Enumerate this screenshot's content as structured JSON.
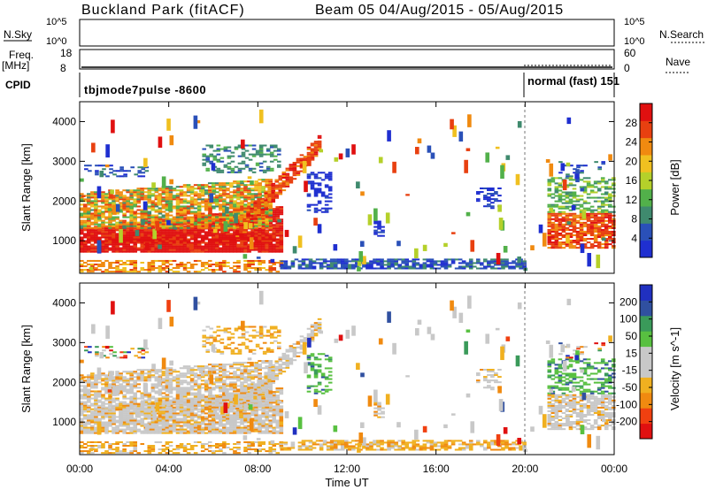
{
  "header": {
    "title": "Buckland Park (fitACF)",
    "beam_info": "Beam 05 04/Aug/2015 - 05/Aug/2015"
  },
  "noise_panel": {
    "left_label": "N.Sky",
    "right_label": "N.Search",
    "tick_hi": "10^5",
    "tick_lo": "10^0",
    "tick_hi_right": "10^5",
    "tick_lo_right": "10^0"
  },
  "freq_panel": {
    "left_label_1": "Freq.",
    "left_label_2": "[MHz]",
    "tick_hi": "18",
    "tick_lo": "8",
    "right_label": "Nave",
    "right_tick_hi": "60",
    "right_tick_lo": "0"
  },
  "cpid_panel": {
    "label": "CPID",
    "segments": [
      {
        "text": "tbjmode7pulse -8600"
      },
      {
        "text": "normal (fast) 151"
      }
    ]
  },
  "colors": {
    "power": [
      "#1f2fd0",
      "#2a50b8",
      "#3f8a6e",
      "#52b04a",
      "#b5d02a",
      "#f0c020",
      "#f08a10",
      "#e84010",
      "#e01010"
    ],
    "velocity": [
      "#e01010",
      "#f04010",
      "#f08a10",
      "#f0b020",
      "#c8c8c8",
      "#c8c8c8",
      "#58c040",
      "#3a9a5a",
      "#3050a0",
      "#2030c0"
    ]
  },
  "chart_data": [
    {
      "type": "heatmap",
      "title": "",
      "xlabel": "Time UT",
      "ylabel": "Slant Range [km]",
      "xlim": [
        "00:00",
        "24:00"
      ],
      "ylim": [
        180,
        4500
      ],
      "x_ticks": [
        "00:00",
        "04:00",
        "08:00",
        "12:00",
        "16:00",
        "20:00",
        "00:00"
      ],
      "y_ticks": [
        "1000",
        "2000",
        "3000",
        "4000"
      ],
      "colorbar": {
        "label": "Power [dB]",
        "ticks": [
          "4",
          "8",
          "12",
          "16",
          "20",
          "24",
          "28"
        ],
        "range": [
          0,
          30
        ]
      }
    },
    {
      "type": "heatmap",
      "title": "",
      "xlabel": "Time UT",
      "ylabel": "Slant Range [km]",
      "xlim": [
        "00:00",
        "24:00"
      ],
      "ylim": [
        180,
        4500
      ],
      "x_ticks": [
        "00:00",
        "04:00",
        "08:00",
        "12:00",
        "16:00",
        "20:00",
        "00:00"
      ],
      "y_ticks": [
        "1000",
        "2000",
        "3000",
        "4000"
      ],
      "colorbar": {
        "label": "Velocity [m s^-1]",
        "ticks": [
          "200",
          "100",
          "50",
          "15",
          "-15",
          "-50",
          "-100",
          "-200"
        ],
        "range": [
          -250,
          250
        ]
      }
    }
  ]
}
